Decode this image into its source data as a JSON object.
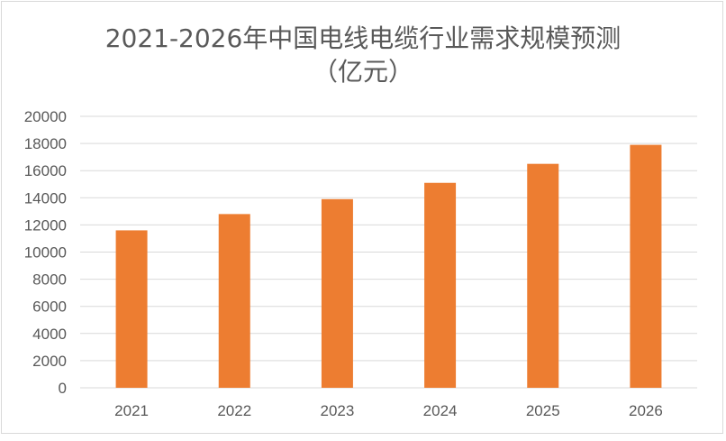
{
  "chart_data": {
    "type": "bar",
    "title": "2021-2026年中国电线电缆行业需求规模预测",
    "subtitle": "（亿元）",
    "categories": [
      "2021",
      "2022",
      "2023",
      "2024",
      "2025",
      "2026"
    ],
    "values": [
      11600,
      12800,
      13900,
      15100,
      16500,
      17900
    ],
    "ylim": [
      0,
      20000
    ],
    "yticks": [
      "0",
      "2000",
      "4000",
      "6000",
      "8000",
      "10000",
      "12000",
      "14000",
      "16000",
      "18000",
      "20000"
    ],
    "grid": true,
    "legend": "none",
    "colors": {
      "bar": "#ED7D31",
      "grid": "#D9D9D9",
      "text": "#595959"
    }
  }
}
